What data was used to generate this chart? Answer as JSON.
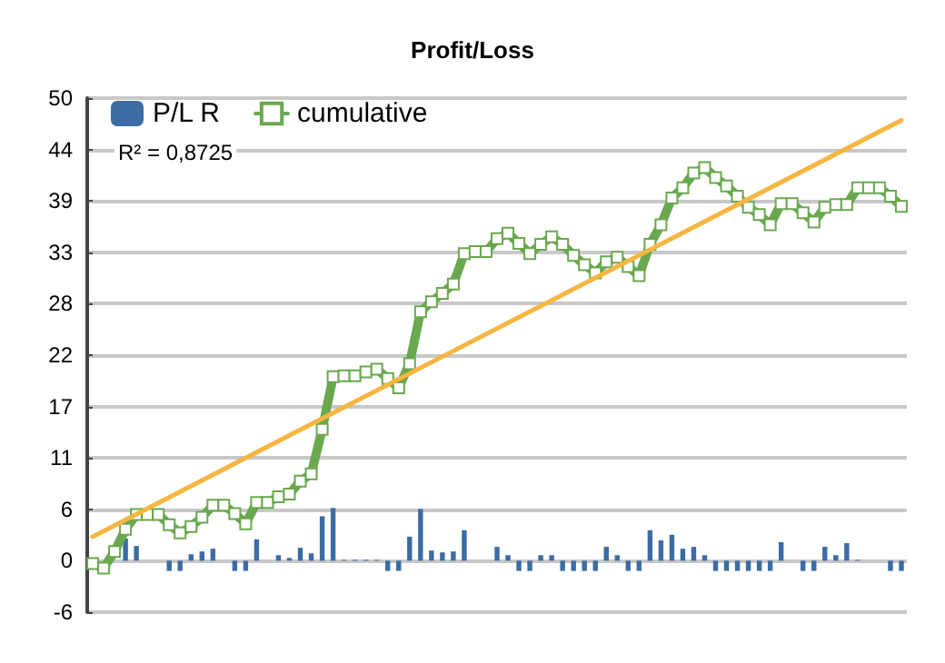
{
  "chart_data": {
    "type": "bar",
    "title": "Profit/Loss",
    "categories": [
      null,
      null,
      null,
      null,
      null,
      null,
      null,
      null,
      null,
      null,
      null,
      null,
      null,
      null,
      null,
      null,
      null,
      null,
      null,
      null,
      null,
      null,
      null,
      null,
      null,
      null,
      null,
      null,
      null,
      null,
      null,
      null,
      null,
      null,
      null,
      null,
      null,
      null,
      null,
      null,
      null,
      null,
      null,
      null,
      null,
      null,
      null,
      null,
      null,
      null,
      null,
      null,
      null,
      null,
      null,
      null,
      null,
      null,
      null,
      null,
      null,
      null,
      null,
      null,
      null,
      null,
      null,
      null,
      null,
      null,
      null,
      null,
      null,
      null,
      null
    ],
    "series": [
      {
        "name": "P/L R",
        "color": "#3b6ca3",
        "values": [
          null,
          null,
          null,
          2.4,
          1.6,
          0,
          0,
          -1.1,
          -1.1,
          0.7,
          1.0,
          1.3,
          0,
          -1.1,
          -1.1,
          2.3,
          0,
          0.6,
          0.3,
          1.4,
          0.8,
          4.8,
          5.7,
          0.1,
          0.1,
          0.1,
          0.1,
          -1.1,
          -1.1,
          2.6,
          5.6,
          1.1,
          0.9,
          1.0,
          3.3,
          0,
          0,
          1.5,
          0.6,
          -1.1,
          -1.1,
          0.6,
          0.6,
          -1.1,
          -1.1,
          -1.1,
          -1.1,
          1.5,
          0.6,
          -1.1,
          -1.1,
          3.3,
          2.2,
          2.8,
          1.3,
          1.5,
          0.6,
          -1.1,
          -1.1,
          -1.1,
          -1.1,
          -1.1,
          -1.1,
          2.0,
          0,
          -1.1,
          -1.1,
          1.5,
          0.6,
          1.9,
          0.1,
          0,
          0,
          -1.1,
          -1.1
        ]
      },
      {
        "name": "cumulative",
        "type": "line",
        "color": "#6aa84f",
        "marker": "square",
        "values": [
          -0.3,
          -0.8,
          1.0,
          3.4,
          5.0,
          5.0,
          5.0,
          3.9,
          3.0,
          3.7,
          4.7,
          6.0,
          6.0,
          5.1,
          4.0,
          6.3,
          6.3,
          6.9,
          7.2,
          8.6,
          9.4,
          14.2,
          19.9,
          20.0,
          20.0,
          20.4,
          20.7,
          19.7,
          18.7,
          21.3,
          26.9,
          28.0,
          28.9,
          29.9,
          33.2,
          33.4,
          33.4,
          34.8,
          35.4,
          34.3,
          33.2,
          34.2,
          35.0,
          34.2,
          33.0,
          32.0,
          31.1,
          32.3,
          32.8,
          31.8,
          30.8,
          34.2,
          36.3,
          39.2,
          40.3,
          41.9,
          42.5,
          41.4,
          40.5,
          39.4,
          38.2,
          37.4,
          36.3,
          38.6,
          38.6,
          37.6,
          36.6,
          38.2,
          38.5,
          38.5,
          40.3,
          40.3,
          40.3,
          39.4,
          38.3
        ]
      },
      {
        "type": "line",
        "color": "#f7b541",
        "marker": "none",
        "values": [
          2.6,
          null,
          null,
          null,
          null,
          null,
          null,
          null,
          null,
          null,
          null,
          null,
          null,
          null,
          null,
          null,
          null,
          null,
          null,
          null,
          null,
          null,
          null,
          null,
          null,
          null,
          null,
          null,
          null,
          null,
          null,
          null,
          null,
          null,
          null,
          null,
          null,
          null,
          null,
          null,
          null,
          null,
          null,
          null,
          null,
          null,
          null,
          null,
          null,
          null,
          null,
          null,
          null,
          null,
          null,
          null,
          null,
          null,
          null,
          null,
          null,
          null,
          null,
          null,
          null,
          null,
          null,
          null,
          null,
          null,
          null,
          null,
          null,
          null,
          47.6
        ]
      }
    ],
    "ylim": [
      -5.556,
      50
    ],
    "yticks": [
      {
        "value": -5.556,
        "label": "-6"
      },
      0,
      {
        "value": 5.556,
        "label": "6"
      },
      {
        "value": 11.111,
        "label": "11"
      },
      {
        "value": 16.667,
        "label": "17"
      },
      {
        "value": 22.222,
        "label": "22"
      },
      {
        "value": 27.778,
        "label": "28"
      },
      {
        "value": 33.333,
        "label": "33"
      },
      {
        "value": 38.889,
        "label": "39"
      },
      {
        "value": 44.444,
        "label": "44"
      },
      50
    ],
    "grid": "y",
    "legend": "top left",
    "annotations": [
      "R² = 0,8725"
    ]
  }
}
